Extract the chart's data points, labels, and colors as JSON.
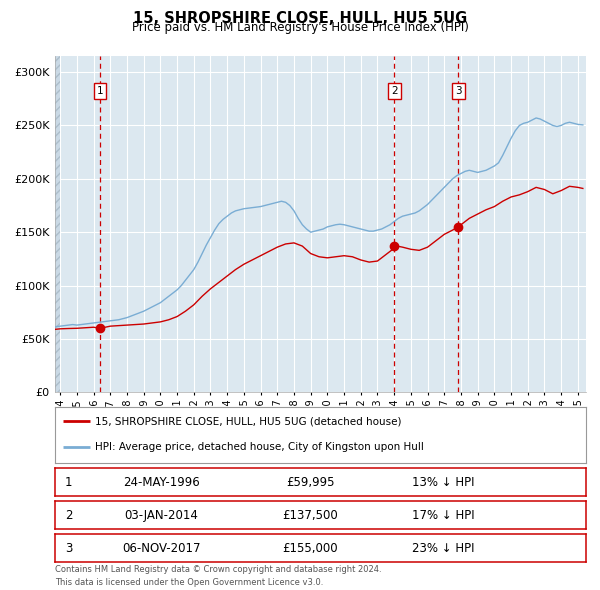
{
  "title": "15, SHROPSHIRE CLOSE, HULL, HU5 5UG",
  "subtitle": "Price paid vs. HM Land Registry's House Price Index (HPI)",
  "legend_line1": "15, SHROPSHIRE CLOSE, HULL, HU5 5UG (detached house)",
  "legend_line2": "HPI: Average price, detached house, City of Kingston upon Hull",
  "footer1": "Contains HM Land Registry data © Crown copyright and database right 2024.",
  "footer2": "This data is licensed under the Open Government Licence v3.0.",
  "sale_color": "#cc0000",
  "hpi_color": "#7aadd4",
  "vline_color": "#cc0000",
  "dot_color": "#cc0000",
  "background_chart": "#dce8f0",
  "background_fig": "#ffffff",
  "grid_color": "#ffffff",
  "hatch_color": "#c8d8e4",
  "yticks": [
    0,
    50000,
    100000,
    150000,
    200000,
    250000,
    300000
  ],
  "ytick_labels": [
    "£0",
    "£50K",
    "£100K",
    "£150K",
    "£200K",
    "£250K",
    "£300K"
  ],
  "xmin": 1993.7,
  "xmax": 2025.5,
  "ymin": 0,
  "ymax": 315000,
  "hatch_xmax": 1994.0,
  "transactions": [
    {
      "label": "1",
      "date_num": 1996.39,
      "price": 59995,
      "pct": "13%",
      "date_str": "24-MAY-1996"
    },
    {
      "label": "2",
      "date_num": 2014.01,
      "price": 137500,
      "pct": "17%",
      "date_str": "03-JAN-2014"
    },
    {
      "label": "3",
      "date_num": 2017.84,
      "price": 155000,
      "pct": "23%",
      "date_str": "06-NOV-2017"
    }
  ],
  "hpi_data": [
    [
      1993.7,
      61500
    ],
    [
      1994.0,
      62000
    ],
    [
      1994.25,
      62500
    ],
    [
      1994.5,
      63000
    ],
    [
      1994.75,
      63500
    ],
    [
      1995.0,
      63000
    ],
    [
      1995.25,
      63500
    ],
    [
      1995.5,
      64000
    ],
    [
      1995.75,
      64500
    ],
    [
      1996.0,
      65000
    ],
    [
      1996.25,
      65500
    ],
    [
      1996.5,
      66000
    ],
    [
      1996.75,
      66500
    ],
    [
      1997.0,
      67000
    ],
    [
      1997.25,
      67500
    ],
    [
      1997.5,
      68000
    ],
    [
      1997.75,
      69000
    ],
    [
      1998.0,
      70000
    ],
    [
      1998.25,
      71500
    ],
    [
      1998.5,
      73000
    ],
    [
      1998.75,
      74500
    ],
    [
      1999.0,
      76000
    ],
    [
      1999.25,
      78000
    ],
    [
      1999.5,
      80000
    ],
    [
      1999.75,
      82000
    ],
    [
      2000.0,
      84000
    ],
    [
      2000.25,
      87000
    ],
    [
      2000.5,
      90000
    ],
    [
      2000.75,
      93000
    ],
    [
      2001.0,
      96000
    ],
    [
      2001.25,
      100000
    ],
    [
      2001.5,
      105000
    ],
    [
      2001.75,
      110000
    ],
    [
      2002.0,
      115000
    ],
    [
      2002.25,
      122000
    ],
    [
      2002.5,
      130000
    ],
    [
      2002.75,
      138000
    ],
    [
      2003.0,
      145000
    ],
    [
      2003.25,
      152000
    ],
    [
      2003.5,
      158000
    ],
    [
      2003.75,
      162000
    ],
    [
      2004.0,
      165000
    ],
    [
      2004.25,
      168000
    ],
    [
      2004.5,
      170000
    ],
    [
      2004.75,
      171000
    ],
    [
      2005.0,
      172000
    ],
    [
      2005.25,
      172500
    ],
    [
      2005.5,
      173000
    ],
    [
      2005.75,
      173500
    ],
    [
      2006.0,
      174000
    ],
    [
      2006.25,
      175000
    ],
    [
      2006.5,
      176000
    ],
    [
      2006.75,
      177000
    ],
    [
      2007.0,
      178000
    ],
    [
      2007.25,
      179000
    ],
    [
      2007.5,
      178000
    ],
    [
      2007.75,
      175000
    ],
    [
      2008.0,
      170000
    ],
    [
      2008.25,
      163000
    ],
    [
      2008.5,
      157000
    ],
    [
      2008.75,
      153000
    ],
    [
      2009.0,
      150000
    ],
    [
      2009.25,
      151000
    ],
    [
      2009.5,
      152000
    ],
    [
      2009.75,
      153000
    ],
    [
      2010.0,
      155000
    ],
    [
      2010.25,
      156000
    ],
    [
      2010.5,
      157000
    ],
    [
      2010.75,
      157500
    ],
    [
      2011.0,
      157000
    ],
    [
      2011.25,
      156000
    ],
    [
      2011.5,
      155000
    ],
    [
      2011.75,
      154000
    ],
    [
      2012.0,
      153000
    ],
    [
      2012.25,
      152000
    ],
    [
      2012.5,
      151000
    ],
    [
      2012.75,
      151000
    ],
    [
      2013.0,
      152000
    ],
    [
      2013.25,
      153000
    ],
    [
      2013.5,
      155000
    ],
    [
      2013.75,
      157000
    ],
    [
      2014.0,
      160000
    ],
    [
      2014.25,
      163000
    ],
    [
      2014.5,
      165000
    ],
    [
      2014.75,
      166000
    ],
    [
      2015.0,
      167000
    ],
    [
      2015.25,
      168000
    ],
    [
      2015.5,
      170000
    ],
    [
      2015.75,
      173000
    ],
    [
      2016.0,
      176000
    ],
    [
      2016.25,
      180000
    ],
    [
      2016.5,
      184000
    ],
    [
      2016.75,
      188000
    ],
    [
      2017.0,
      192000
    ],
    [
      2017.25,
      196000
    ],
    [
      2017.5,
      200000
    ],
    [
      2017.75,
      203000
    ],
    [
      2018.0,
      205000
    ],
    [
      2018.25,
      207000
    ],
    [
      2018.5,
      208000
    ],
    [
      2018.75,
      207000
    ],
    [
      2019.0,
      206000
    ],
    [
      2019.25,
      207000
    ],
    [
      2019.5,
      208000
    ],
    [
      2019.75,
      210000
    ],
    [
      2020.0,
      212000
    ],
    [
      2020.25,
      215000
    ],
    [
      2020.5,
      222000
    ],
    [
      2020.75,
      230000
    ],
    [
      2021.0,
      238000
    ],
    [
      2021.25,
      245000
    ],
    [
      2021.5,
      250000
    ],
    [
      2021.75,
      252000
    ],
    [
      2022.0,
      253000
    ],
    [
      2022.25,
      255000
    ],
    [
      2022.5,
      257000
    ],
    [
      2022.75,
      256000
    ],
    [
      2023.0,
      254000
    ],
    [
      2023.25,
      252000
    ],
    [
      2023.5,
      250000
    ],
    [
      2023.75,
      249000
    ],
    [
      2024.0,
      250000
    ],
    [
      2024.25,
      252000
    ],
    [
      2024.5,
      253000
    ],
    [
      2024.75,
      252000
    ],
    [
      2025.0,
      251000
    ],
    [
      2025.3,
      250500
    ]
  ],
  "sale_line_data": [
    [
      1993.7,
      59000
    ],
    [
      1994.0,
      59500
    ],
    [
      1994.5,
      59800
    ],
    [
      1995.0,
      60000
    ],
    [
      1995.5,
      60500
    ],
    [
      1996.0,
      61000
    ],
    [
      1996.39,
      59995
    ],
    [
      1997.0,
      62000
    ],
    [
      1997.5,
      62500
    ],
    [
      1998.0,
      63000
    ],
    [
      1998.5,
      63500
    ],
    [
      1999.0,
      64000
    ],
    [
      1999.5,
      65000
    ],
    [
      2000.0,
      66000
    ],
    [
      2000.5,
      68000
    ],
    [
      2001.0,
      71000
    ],
    [
      2001.5,
      76000
    ],
    [
      2002.0,
      82000
    ],
    [
      2002.5,
      90000
    ],
    [
      2003.0,
      97000
    ],
    [
      2003.5,
      103000
    ],
    [
      2004.0,
      109000
    ],
    [
      2004.5,
      115000
    ],
    [
      2005.0,
      120000
    ],
    [
      2005.5,
      124000
    ],
    [
      2006.0,
      128000
    ],
    [
      2006.5,
      132000
    ],
    [
      2007.0,
      136000
    ],
    [
      2007.5,
      139000
    ],
    [
      2008.0,
      140000
    ],
    [
      2008.5,
      137000
    ],
    [
      2009.0,
      130000
    ],
    [
      2009.5,
      127000
    ],
    [
      2010.0,
      126000
    ],
    [
      2010.5,
      127000
    ],
    [
      2011.0,
      128000
    ],
    [
      2011.5,
      127000
    ],
    [
      2012.0,
      124000
    ],
    [
      2012.5,
      122000
    ],
    [
      2013.0,
      123000
    ],
    [
      2013.5,
      129000
    ],
    [
      2014.0,
      135000
    ],
    [
      2014.01,
      137500
    ],
    [
      2014.5,
      136000
    ],
    [
      2015.0,
      134000
    ],
    [
      2015.5,
      133000
    ],
    [
      2016.0,
      136000
    ],
    [
      2016.5,
      142000
    ],
    [
      2017.0,
      148000
    ],
    [
      2017.5,
      152000
    ],
    [
      2017.84,
      155000
    ],
    [
      2018.0,
      157000
    ],
    [
      2018.5,
      163000
    ],
    [
      2019.0,
      167000
    ],
    [
      2019.5,
      171000
    ],
    [
      2020.0,
      174000
    ],
    [
      2020.5,
      179000
    ],
    [
      2021.0,
      183000
    ],
    [
      2021.5,
      185000
    ],
    [
      2022.0,
      188000
    ],
    [
      2022.5,
      192000
    ],
    [
      2023.0,
      190000
    ],
    [
      2023.5,
      186000
    ],
    [
      2024.0,
      189000
    ],
    [
      2024.5,
      193000
    ],
    [
      2025.0,
      192000
    ],
    [
      2025.3,
      191000
    ]
  ]
}
